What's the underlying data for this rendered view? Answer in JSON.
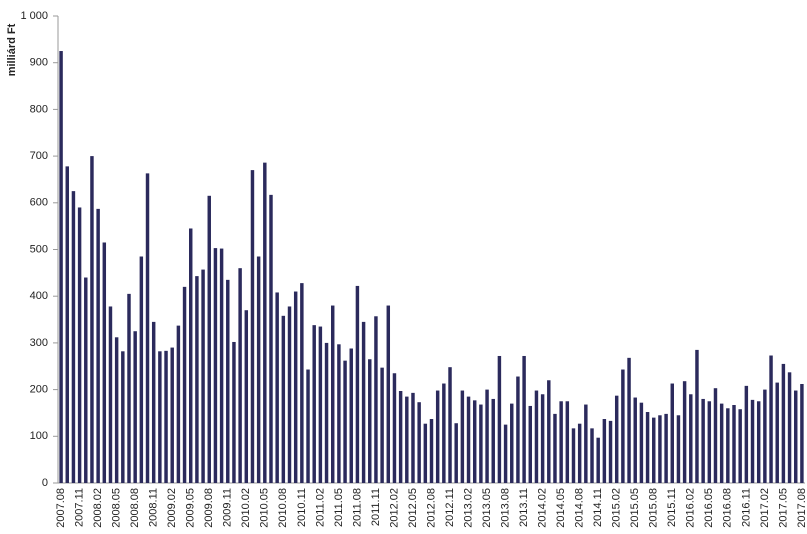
{
  "chart_data": {
    "type": "bar",
    "y_label": "milliárd Ft",
    "color": "#2b2a5c",
    "grid": false,
    "categories": [
      "2007.08",
      null,
      null,
      "2007.11",
      null,
      null,
      "2008.02",
      null,
      null,
      "2008.05",
      null,
      null,
      "2008.08",
      null,
      null,
      "2008.11",
      null,
      null,
      "2009.02",
      null,
      null,
      "2009.05",
      null,
      null,
      "2009.08",
      null,
      null,
      "2009.11",
      null,
      null,
      "2010.02",
      null,
      null,
      "2010.05",
      null,
      null,
      "2010.08",
      null,
      null,
      "2010.11",
      null,
      null,
      "2011.02",
      null,
      null,
      "2011.05",
      null,
      null,
      "2011.08",
      null,
      null,
      "2011.11",
      null,
      null,
      "2012.02",
      null,
      null,
      "2012.05",
      null,
      null,
      "2012.08",
      null,
      null,
      "2012.11",
      null,
      null,
      "2013.02",
      null,
      null,
      "2013.05",
      null,
      null,
      "2013.08",
      null,
      null,
      "2013.11",
      null,
      null,
      "2014.02",
      null,
      null,
      "2014.05",
      null,
      null,
      "2014.08",
      null,
      null,
      "2014.11",
      null,
      null,
      "2015.02",
      null,
      null,
      "2015.05",
      null,
      null,
      "2015.08",
      null,
      null,
      "2015.11",
      null,
      null,
      "2016.02",
      null,
      null,
      "2016.05",
      null,
      null,
      "2016.08",
      null,
      null,
      "2016.11",
      null,
      null,
      "2017.02",
      null,
      null,
      "2017.05",
      null,
      null,
      "2017.08"
    ],
    "values": [
      925,
      678,
      625,
      590,
      440,
      700,
      587,
      515,
      378,
      312,
      282,
      405,
      325,
      485,
      663,
      345,
      282,
      283,
      290,
      337,
      420,
      545,
      443,
      457,
      615,
      503,
      502,
      435,
      302,
      460,
      370,
      670,
      485,
      686,
      617,
      408,
      358,
      378,
      410,
      428,
      243,
      338,
      335,
      300,
      380,
      297,
      262,
      288,
      422,
      345,
      265,
      357,
      247,
      380,
      235,
      197,
      185,
      193,
      173,
      127,
      137,
      198,
      213,
      248,
      128,
      198,
      185,
      177,
      168,
      200,
      180,
      272,
      125,
      170,
      228,
      272,
      165,
      198,
      190,
      220,
      148,
      175,
      175,
      117,
      127,
      168,
      117,
      97,
      137,
      133,
      187,
      243,
      268,
      183,
      172,
      152,
      140,
      145,
      148,
      213,
      145,
      218,
      190,
      285,
      180,
      175,
      203,
      170,
      160,
      167,
      158,
      208,
      178,
      175,
      200,
      273,
      215,
      255,
      237,
      198,
      212
    ],
    "ylim": [
      0,
      1000
    ],
    "yticks": [
      0,
      100,
      200,
      300,
      400,
      500,
      600,
      700,
      800,
      900,
      {
        "value": 1000,
        "label": "1 000"
      }
    ]
  }
}
